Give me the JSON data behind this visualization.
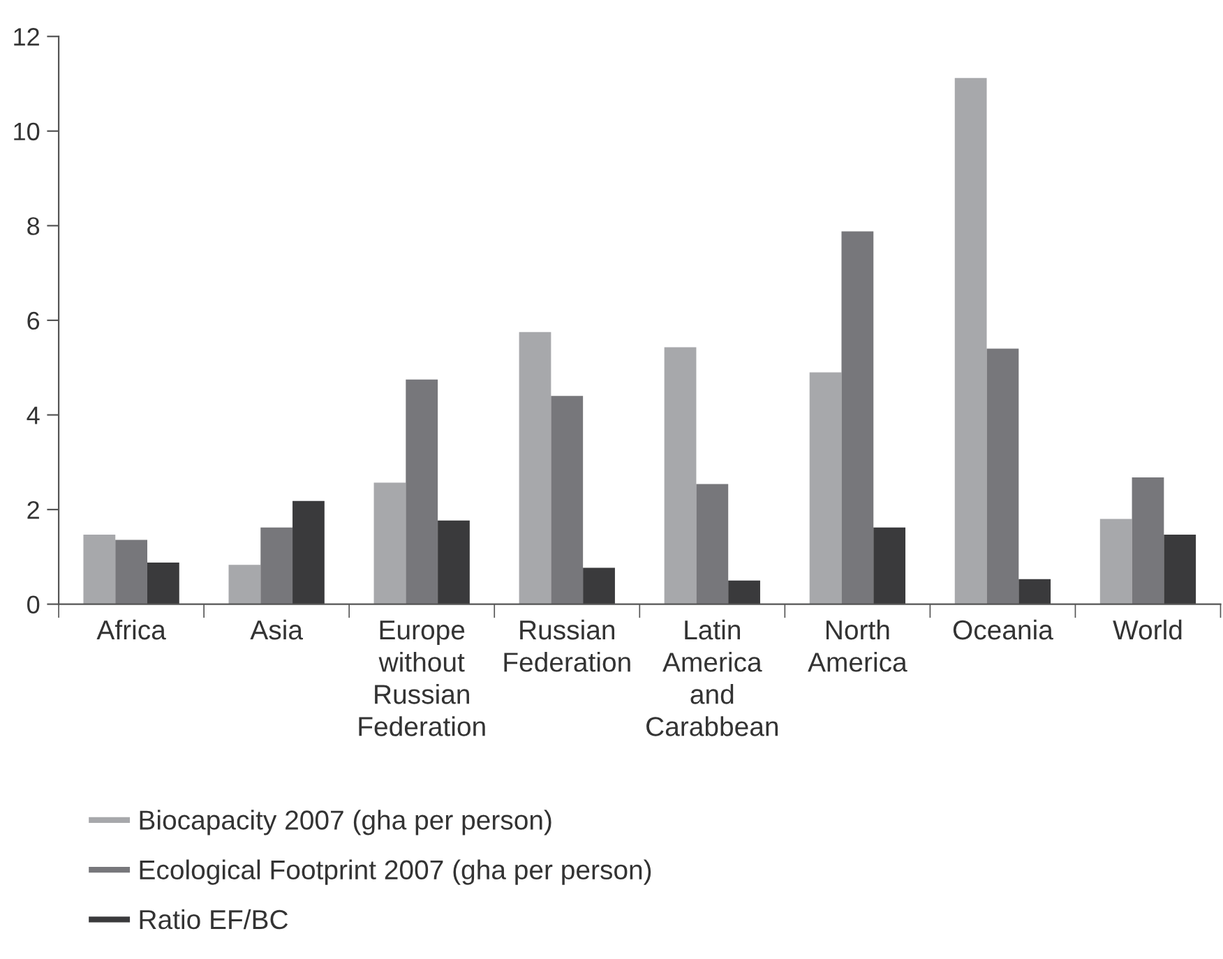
{
  "chart_data": {
    "type": "bar",
    "categories": [
      "Africa",
      "Asia",
      "Europe\nwithout\nRussian\nFederation",
      "Russian\nFederation",
      "Latin\nAmerica\nand\nCarabbean",
      "North\nAmerica",
      "Oceania",
      "World"
    ],
    "series": [
      {
        "name": "Biocapacity 2007 (gha per person)",
        "color": "#a7a8ab",
        "values": [
          1.47,
          0.83,
          2.57,
          5.75,
          5.43,
          4.9,
          11.12,
          1.8
        ]
      },
      {
        "name": "Ecological Footprint 2007 (gha per person)",
        "color": "#77777b",
        "values": [
          1.36,
          1.62,
          4.75,
          4.4,
          2.54,
          7.88,
          5.4,
          2.68
        ]
      },
      {
        "name": "Ratio EF/BC",
        "color": "#3a3a3c",
        "values": [
          0.88,
          2.18,
          1.77,
          0.77,
          0.5,
          1.62,
          0.53,
          1.47
        ]
      }
    ],
    "ylim": [
      0,
      12
    ],
    "yticks": [
      0,
      2,
      4,
      6,
      8,
      10,
      12
    ],
    "grid": false,
    "legend": "bottom"
  }
}
